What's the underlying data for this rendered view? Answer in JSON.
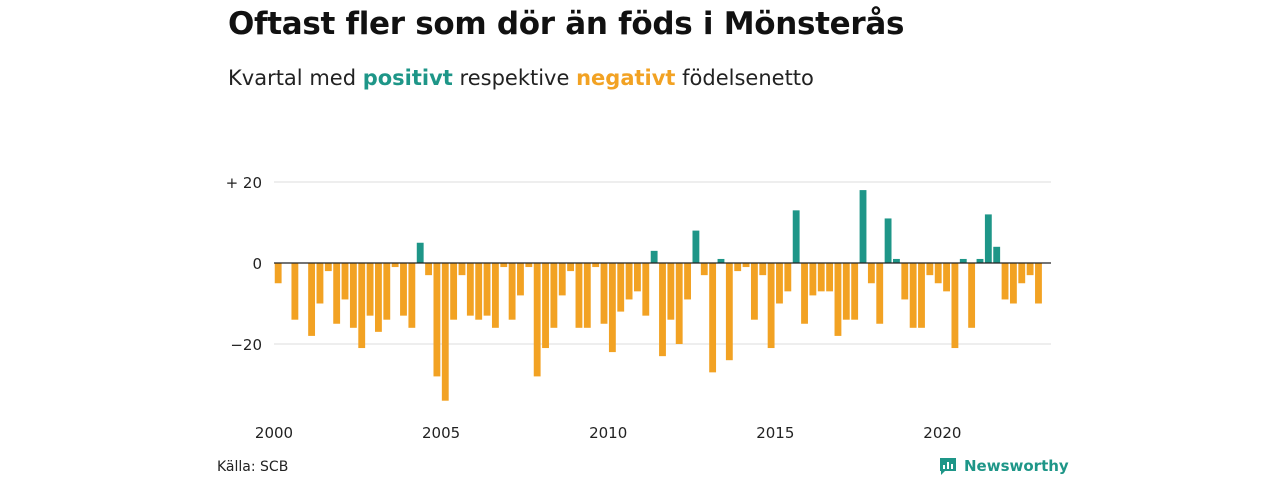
{
  "title": "Oftast fler som dör än föds i Mönsterås",
  "subtitle": {
    "prefix": "Kvartal med",
    "positive_word": "positivt",
    "middle": "respektive",
    "negative_word": "negativt",
    "suffix": "födelsenetto"
  },
  "source": "Källa: SCB",
  "brand": "Newsworthy",
  "colors": {
    "positive": "#1e9688",
    "negative": "#f2a223",
    "grid": "#dddddd",
    "zero": "#222222"
  },
  "chart_data": {
    "type": "bar",
    "x_start": 2000,
    "x_step": 0.25,
    "xlim": [
      2000,
      2023.25
    ],
    "ylim": [
      -35,
      20
    ],
    "y_ticks": [
      20,
      0,
      -20
    ],
    "y_tick_labels": [
      "+ 20",
      "0",
      "−20"
    ],
    "x_ticks": [
      2000,
      2005,
      2010,
      2015,
      2020
    ],
    "x_tick_labels": [
      "2000",
      "2005",
      "2010",
      "2015",
      "2020"
    ],
    "values": [
      -5,
      0,
      -14,
      0,
      -18,
      -10,
      -2,
      -15,
      -9,
      -16,
      -21,
      -13,
      -17,
      -14,
      -1,
      -13,
      -16,
      5,
      -3,
      -28,
      -34,
      -14,
      -3,
      -13,
      -14,
      -13,
      -16,
      -1,
      -14,
      -8,
      -1,
      -28,
      -21,
      -16,
      -8,
      -2,
      -16,
      -16,
      -1,
      -15,
      -22,
      -12,
      -9,
      -7,
      -13,
      3,
      -23,
      -14,
      -20,
      -9,
      8,
      -3,
      -27,
      1,
      -24,
      -2,
      -1,
      -14,
      -3,
      -21,
      -10,
      -7,
      13,
      -15,
      -8,
      -7,
      -7,
      -18,
      -14,
      -14,
      18,
      -5,
      -15,
      11,
      1,
      -9,
      -16,
      -16,
      -3,
      -5,
      -7,
      -21,
      1,
      -16,
      1,
      12,
      4,
      -9,
      -10,
      -5,
      -3,
      -10
    ]
  }
}
